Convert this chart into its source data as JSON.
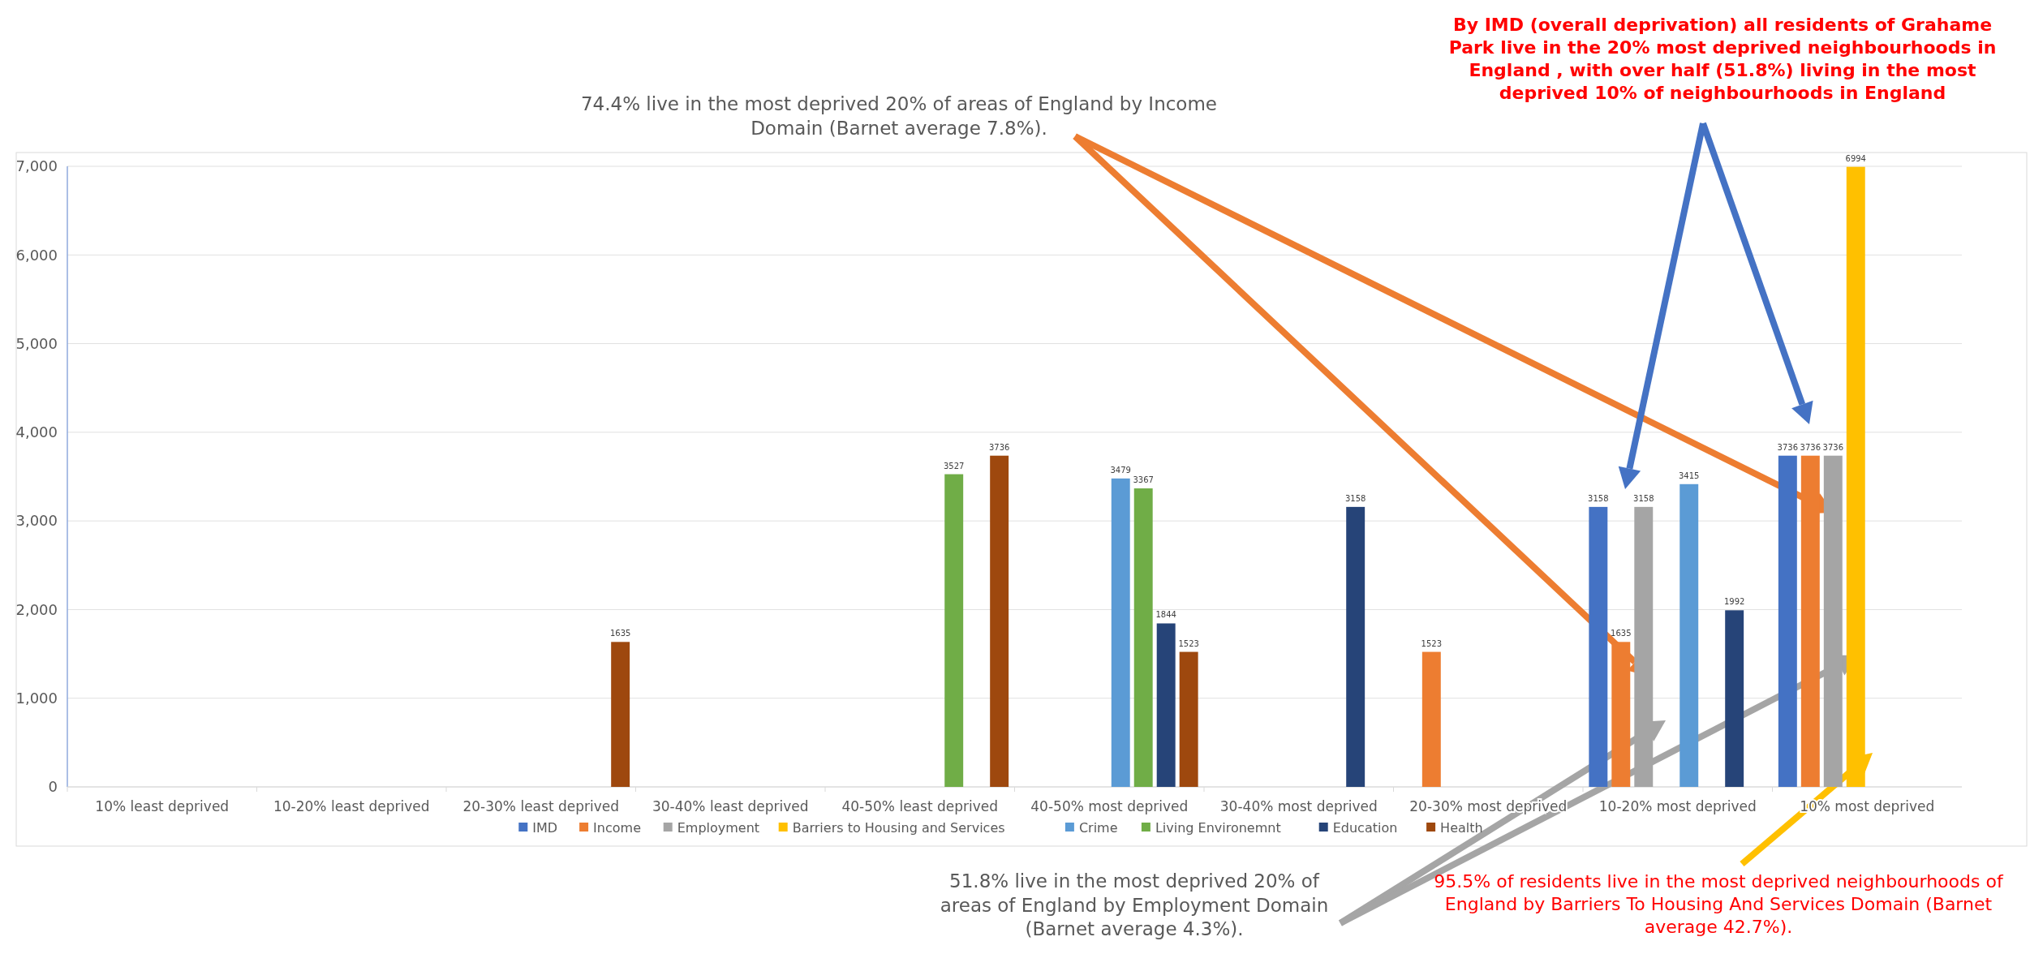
{
  "chart_data": {
    "type": "bar",
    "categories": [
      "10% least deprived",
      "10-20% least deprived",
      "20-30% least deprived",
      "30-40% least deprived",
      "40-50% least deprived",
      "40-50% most deprived",
      "30-40% most deprived",
      "20-30% most deprived",
      "10-20% most deprived",
      "10% most deprived"
    ],
    "series": [
      {
        "name": "IMD",
        "color": "#4472c4",
        "values": [
          null,
          null,
          null,
          null,
          null,
          null,
          null,
          null,
          3158,
          3736
        ]
      },
      {
        "name": "Income",
        "color": "#ed7d31",
        "values": [
          null,
          null,
          null,
          null,
          null,
          null,
          null,
          1523,
          1635,
          3736
        ]
      },
      {
        "name": "Employment",
        "color": "#a5a5a5",
        "values": [
          null,
          null,
          null,
          null,
          null,
          null,
          null,
          null,
          3158,
          3736
        ]
      },
      {
        "name": "Barriers to Housing and Services",
        "color": "#ffc000",
        "values": [
          null,
          null,
          null,
          null,
          null,
          null,
          null,
          null,
          null,
          6994
        ]
      },
      {
        "name": "Crime",
        "color": "#5b9bd5",
        "values": [
          null,
          null,
          null,
          null,
          null,
          3479,
          null,
          null,
          3415,
          null
        ]
      },
      {
        "name": "Living Environemnt",
        "color": "#70ad47",
        "values": [
          null,
          null,
          null,
          null,
          3527,
          3367,
          null,
          null,
          null,
          null
        ]
      },
      {
        "name": "Education",
        "color": "#264478",
        "values": [
          null,
          null,
          null,
          null,
          null,
          1844,
          3158,
          null,
          1992,
          null
        ]
      },
      {
        "name": "Health",
        "color": "#9e480e",
        "values": [
          null,
          null,
          1635,
          null,
          3736,
          1523,
          null,
          null,
          null,
          null
        ]
      }
    ],
    "ylim": [
      0,
      7000
    ],
    "yticks": [
      0,
      {
        "value": 1000,
        "label": "1,000"
      },
      {
        "value": 2000,
        "label": "2,000"
      },
      {
        "value": 3000,
        "label": "3,000"
      },
      {
        "value": 4000,
        "label": "4,000"
      },
      {
        "value": 5000,
        "label": "5,000"
      },
      {
        "value": 6000,
        "label": "6,000"
      },
      {
        "value": 7000,
        "label": "7,000"
      }
    ],
    "grid": "y",
    "legend": "bottom",
    "data_labels": true,
    "annotations": [
      "74.4% live in the most deprived 20% of areas of England by Income Domain (Barnet average 7.8%).",
      "By IMD (overall deprivation) all residents of Grahame Park live in the 20% most deprived neighbourhoods in England , with over half (51.8%) living in the most deprived 10% of neighbourhoods in England",
      "51.8% live in the most deprived 20% of areas of England by Employment Domain (Barnet average 4.3%).",
      "95.5% of residents live in the most deprived neighbourhoods of England by Barriers To Housing And Services Domain (Barnet average 42.7%)."
    ]
  }
}
